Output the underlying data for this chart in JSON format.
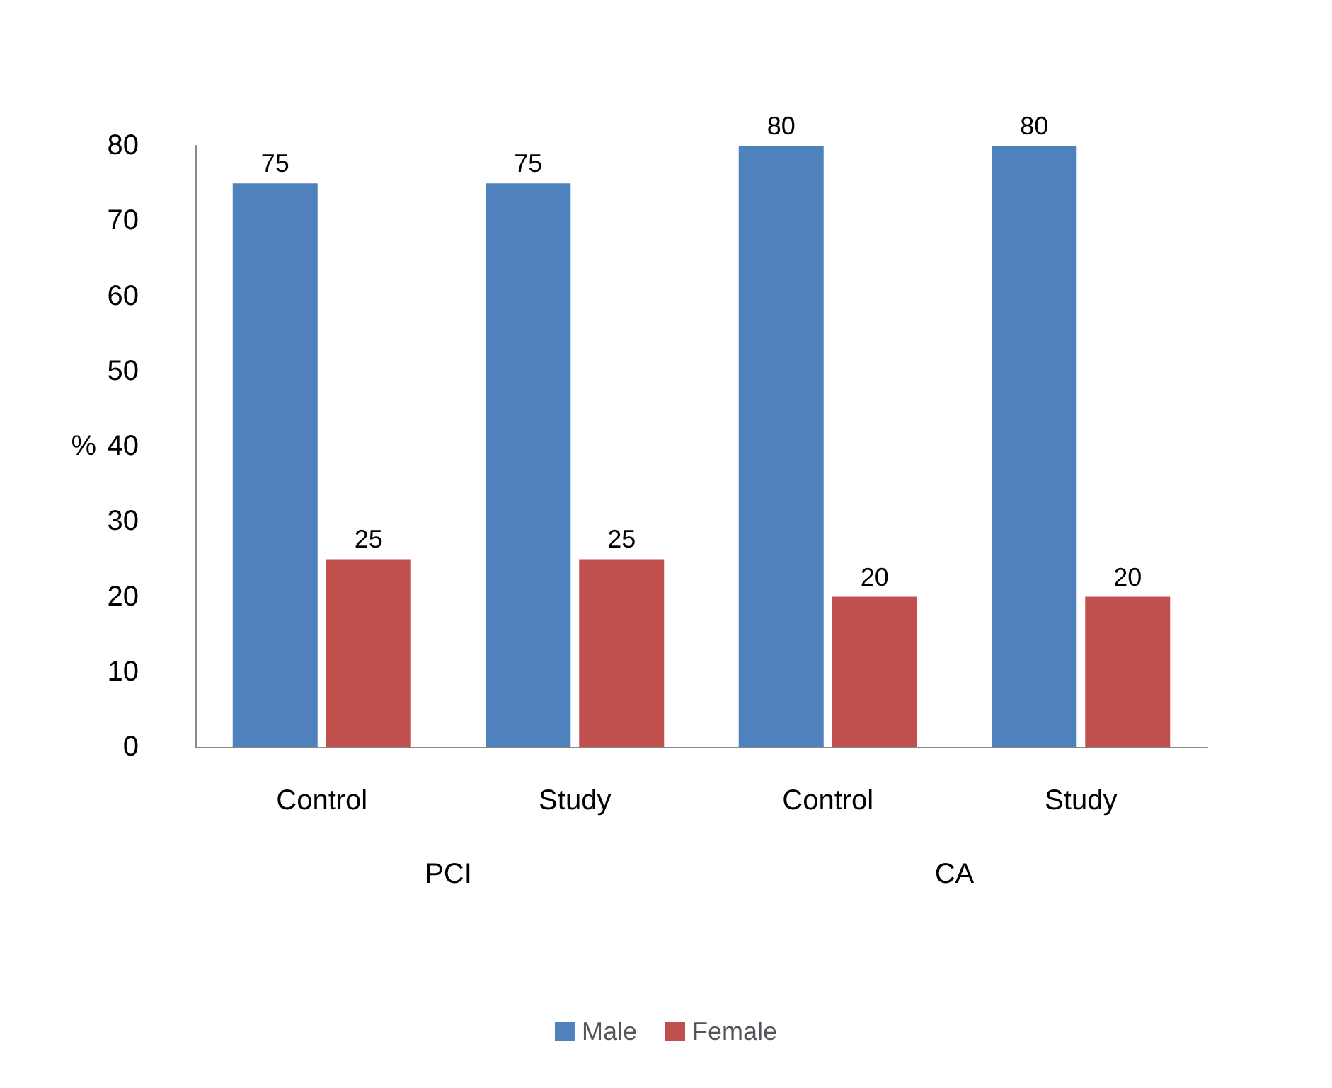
{
  "chart_data": {
    "type": "bar",
    "ylabel": "%",
    "categories": [
      "Control",
      "Study",
      "Control",
      "Study"
    ],
    "series": [
      {
        "name": "Male",
        "color": "#4f81bd",
        "values": [
          75,
          75,
          80,
          80
        ]
      },
      {
        "name": "Female",
        "color": "#c0504d",
        "values": [
          25,
          25,
          20,
          20
        ]
      }
    ],
    "ylim": [
      0,
      80
    ],
    "yticks": [
      0,
      10,
      20,
      30,
      40,
      50,
      60,
      70,
      80
    ],
    "grid": false,
    "legend": "bottom",
    "data_labels": true,
    "annotations": [
      "PCI",
      "CA"
    ]
  }
}
